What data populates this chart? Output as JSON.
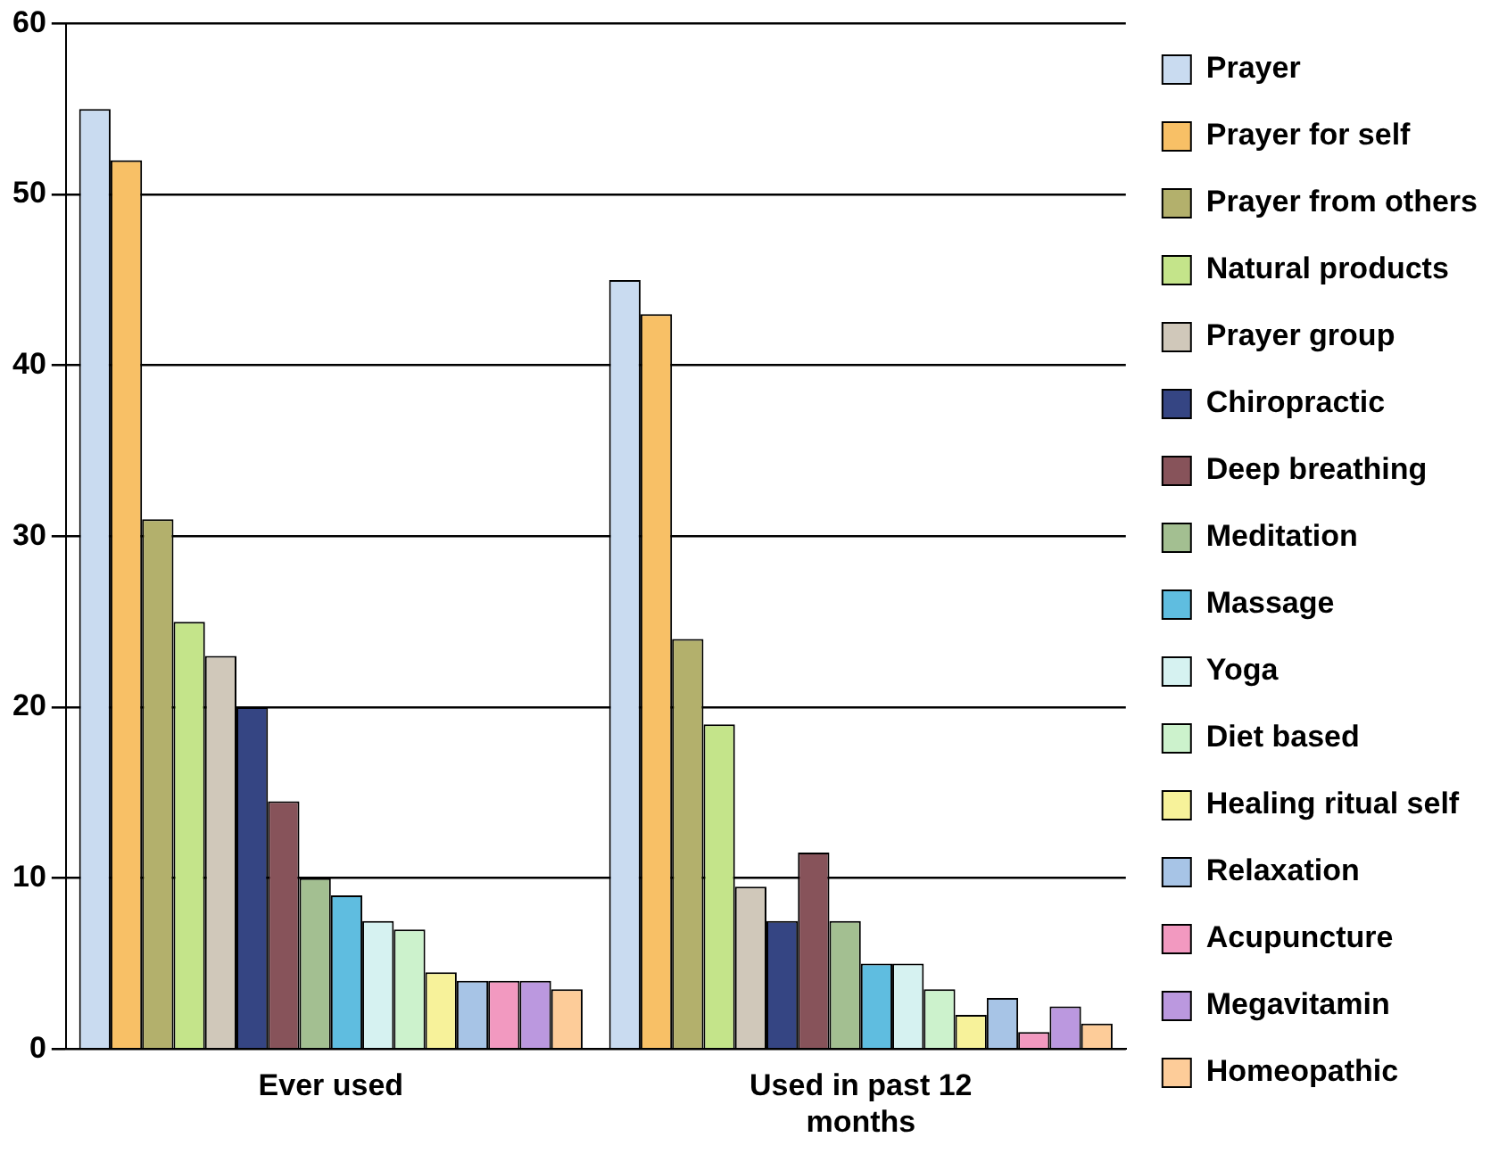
{
  "chart_data": {
    "type": "bar",
    "categories": [
      "Ever used",
      "Used in past 12 months"
    ],
    "series": [
      {
        "name": "Prayer",
        "color": "#c9dbf0",
        "values": [
          55,
          45
        ]
      },
      {
        "name": "Prayer for self",
        "color": "#f8c066",
        "values": [
          52,
          43
        ]
      },
      {
        "name": "Prayer from others",
        "color": "#b3b06c",
        "values": [
          31,
          24
        ]
      },
      {
        "name": "Natural products",
        "color": "#c4e48a",
        "values": [
          25,
          19
        ]
      },
      {
        "name": "Prayer group",
        "color": "#d0c8ba",
        "values": [
          23,
          9.5
        ]
      },
      {
        "name": "Chiropractic",
        "color": "#354583",
        "values": [
          20,
          7.5
        ]
      },
      {
        "name": "Deep breathing",
        "color": "#87535a",
        "values": [
          14.5,
          11.5
        ]
      },
      {
        "name": "Meditation",
        "color": "#a3bf91",
        "values": [
          10,
          7.5
        ]
      },
      {
        "name": "Massage",
        "color": "#5fbde0",
        "values": [
          9,
          5
        ]
      },
      {
        "name": "Yoga",
        "color": "#d6f2f1",
        "values": [
          7.5,
          5
        ]
      },
      {
        "name": "Diet based",
        "color": "#ccf2cc",
        "values": [
          7,
          3.5
        ]
      },
      {
        "name": "Healing ritual self",
        "color": "#f7f29a",
        "values": [
          4.5,
          2
        ]
      },
      {
        "name": "Relaxation",
        "color": "#a7c4e6",
        "values": [
          4,
          3
        ]
      },
      {
        "name": "Acupuncture",
        "color": "#f299c0",
        "values": [
          4,
          1
        ]
      },
      {
        "name": "Megavitamin",
        "color": "#bb98df",
        "values": [
          4,
          2.5
        ]
      },
      {
        "name": "Homeopathic",
        "color": "#fdcc99",
        "values": [
          3.5,
          1.5
        ]
      }
    ],
    "ylim": [
      0,
      60
    ],
    "yticks": [
      0,
      10,
      20,
      30,
      40,
      50,
      60
    ],
    "grid": "y",
    "legend": "right"
  }
}
